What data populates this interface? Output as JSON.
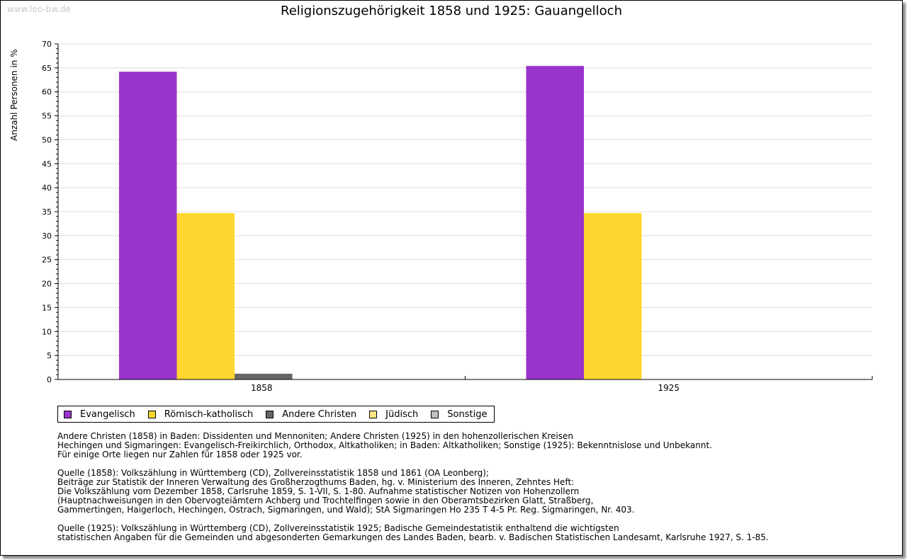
{
  "watermark": "www.leo-bw.de",
  "chart_data": {
    "type": "bar",
    "title": "Religionszugehörigkeit 1858 und 1925: Gauangelloch",
    "ylabel": "Anzahl Personen in %",
    "xlabel": "",
    "ylim": [
      0,
      70
    ],
    "yticks": [
      0,
      5,
      10,
      15,
      20,
      25,
      30,
      35,
      40,
      45,
      50,
      55,
      60,
      65,
      70
    ],
    "categories": [
      "1858",
      "1925"
    ],
    "series": [
      {
        "name": "Evangelisch",
        "color": "#9933cc",
        "values": [
          64.2,
          65.4
        ]
      },
      {
        "name": "Römisch-katholisch",
        "color": "#fed62e",
        "values": [
          34.7,
          34.7
        ]
      },
      {
        "name": "Andere Christen",
        "color": "#666666",
        "values": [
          1.2,
          0
        ]
      },
      {
        "name": "Jüdisch",
        "color": "#fee680",
        "values": [
          0,
          0
        ]
      },
      {
        "name": "Sonstige",
        "color": "#c0c0c0",
        "values": [
          0,
          0
        ]
      }
    ],
    "grid": true,
    "legend": "bottom-left"
  },
  "notes": [
    "Andere Christen (1858) in Baden: Dissidenten und Mennoniten; Andere Christen (1925) in den hohenzollerischen Kreisen\nHechingen und Sigmaringen: Evangelisch-Freikirchlich, Orthodox, Altkatholiken; in Baden: Altkatholiken; Sonstige (1925): Bekenntnislose und Unbekannt.\nFür einige Orte liegen nur Zahlen für 1858 oder 1925 vor.",
    "Quelle (1858): Volkszählung in Württemberg (CD), Zollvereinsstatistik 1858 und 1861 (OA Leonberg);\nBeiträge zur Statistik der Inneren Verwaltung des Großherzogthums Baden, hg. v. Ministerium des Inneren, Zehntes Heft:\nDie Volkszählung vom Dezember 1858, Carlsruhe 1859, S. 1-VII, S. 1-80. Aufnahme statistischer Notizen von Hohenzollern\n(Hauptnachweisungen in den Obervogteiämtern Achberg und Trochtelfingen sowie in den Oberamtsbezirken Glatt, Straßberg,\nGammertingen, Haigerloch, Hechingen, Ostrach, Sigmaringen, und Wald); StA Sigmaringen Ho 235 T 4-5 Pr. Reg. Sigmaringen, Nr. 403.",
    "Quelle (1925): Volkszählung in Württemberg (CD), Zollvereinsstatistik 1925; Badische Gemeindestatistik enthaltend die wichtigsten\nstatistischen Angaben für die Gemeinden und abgesonderten Gemarkungen des Landes Baden, bearb. v. Badischen Statistischen Landesamt, Karlsruhe 1927, S. 1-85."
  ]
}
